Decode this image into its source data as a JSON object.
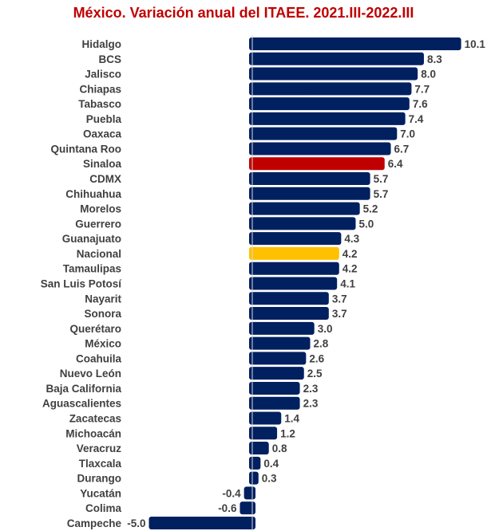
{
  "chart_data": {
    "type": "bar",
    "orientation": "horizontal",
    "title": "México. Variación anual del ITAEE. 2021.III-2022.III",
    "categories": [
      "Hidalgo",
      "BCS",
      "Jalisco",
      "Chiapas",
      "Tabasco",
      "Puebla",
      "Oaxaca",
      "Quintana Roo",
      "Sinaloa",
      "CDMX",
      "Chihuahua",
      "Morelos",
      "Guerrero",
      "Guanajuato",
      "Nacional",
      "Tamaulipas",
      "San Luis Potosí",
      "Nayarit",
      "Sonora",
      "Querétaro",
      "México",
      "Coahuila",
      "Nuevo León",
      "Baja California",
      "Aguascalientes",
      "Zacatecas",
      "Michoacán",
      "Veracruz",
      "Tlaxcala",
      "Durango",
      "Yucatán",
      "Colima",
      "Campeche"
    ],
    "values": [
      10.1,
      8.3,
      8.0,
      7.7,
      7.6,
      7.4,
      7.0,
      6.7,
      6.4,
      5.7,
      5.7,
      5.2,
      5.0,
      4.3,
      4.2,
      4.2,
      4.1,
      3.7,
      3.7,
      3.0,
      2.8,
      2.6,
      2.5,
      2.3,
      2.3,
      1.4,
      1.2,
      0.8,
      0.4,
      0.3,
      -0.4,
      -0.6,
      -5.0
    ],
    "highlight": {
      "Sinaloa": "#C00000",
      "Nacional": "#FFC000"
    },
    "default_color": "#002060",
    "title_color": "#C00000",
    "label_color": "#404040",
    "xlim": [
      -5.0,
      10.1
    ],
    "grid": false,
    "legend": "none"
  }
}
